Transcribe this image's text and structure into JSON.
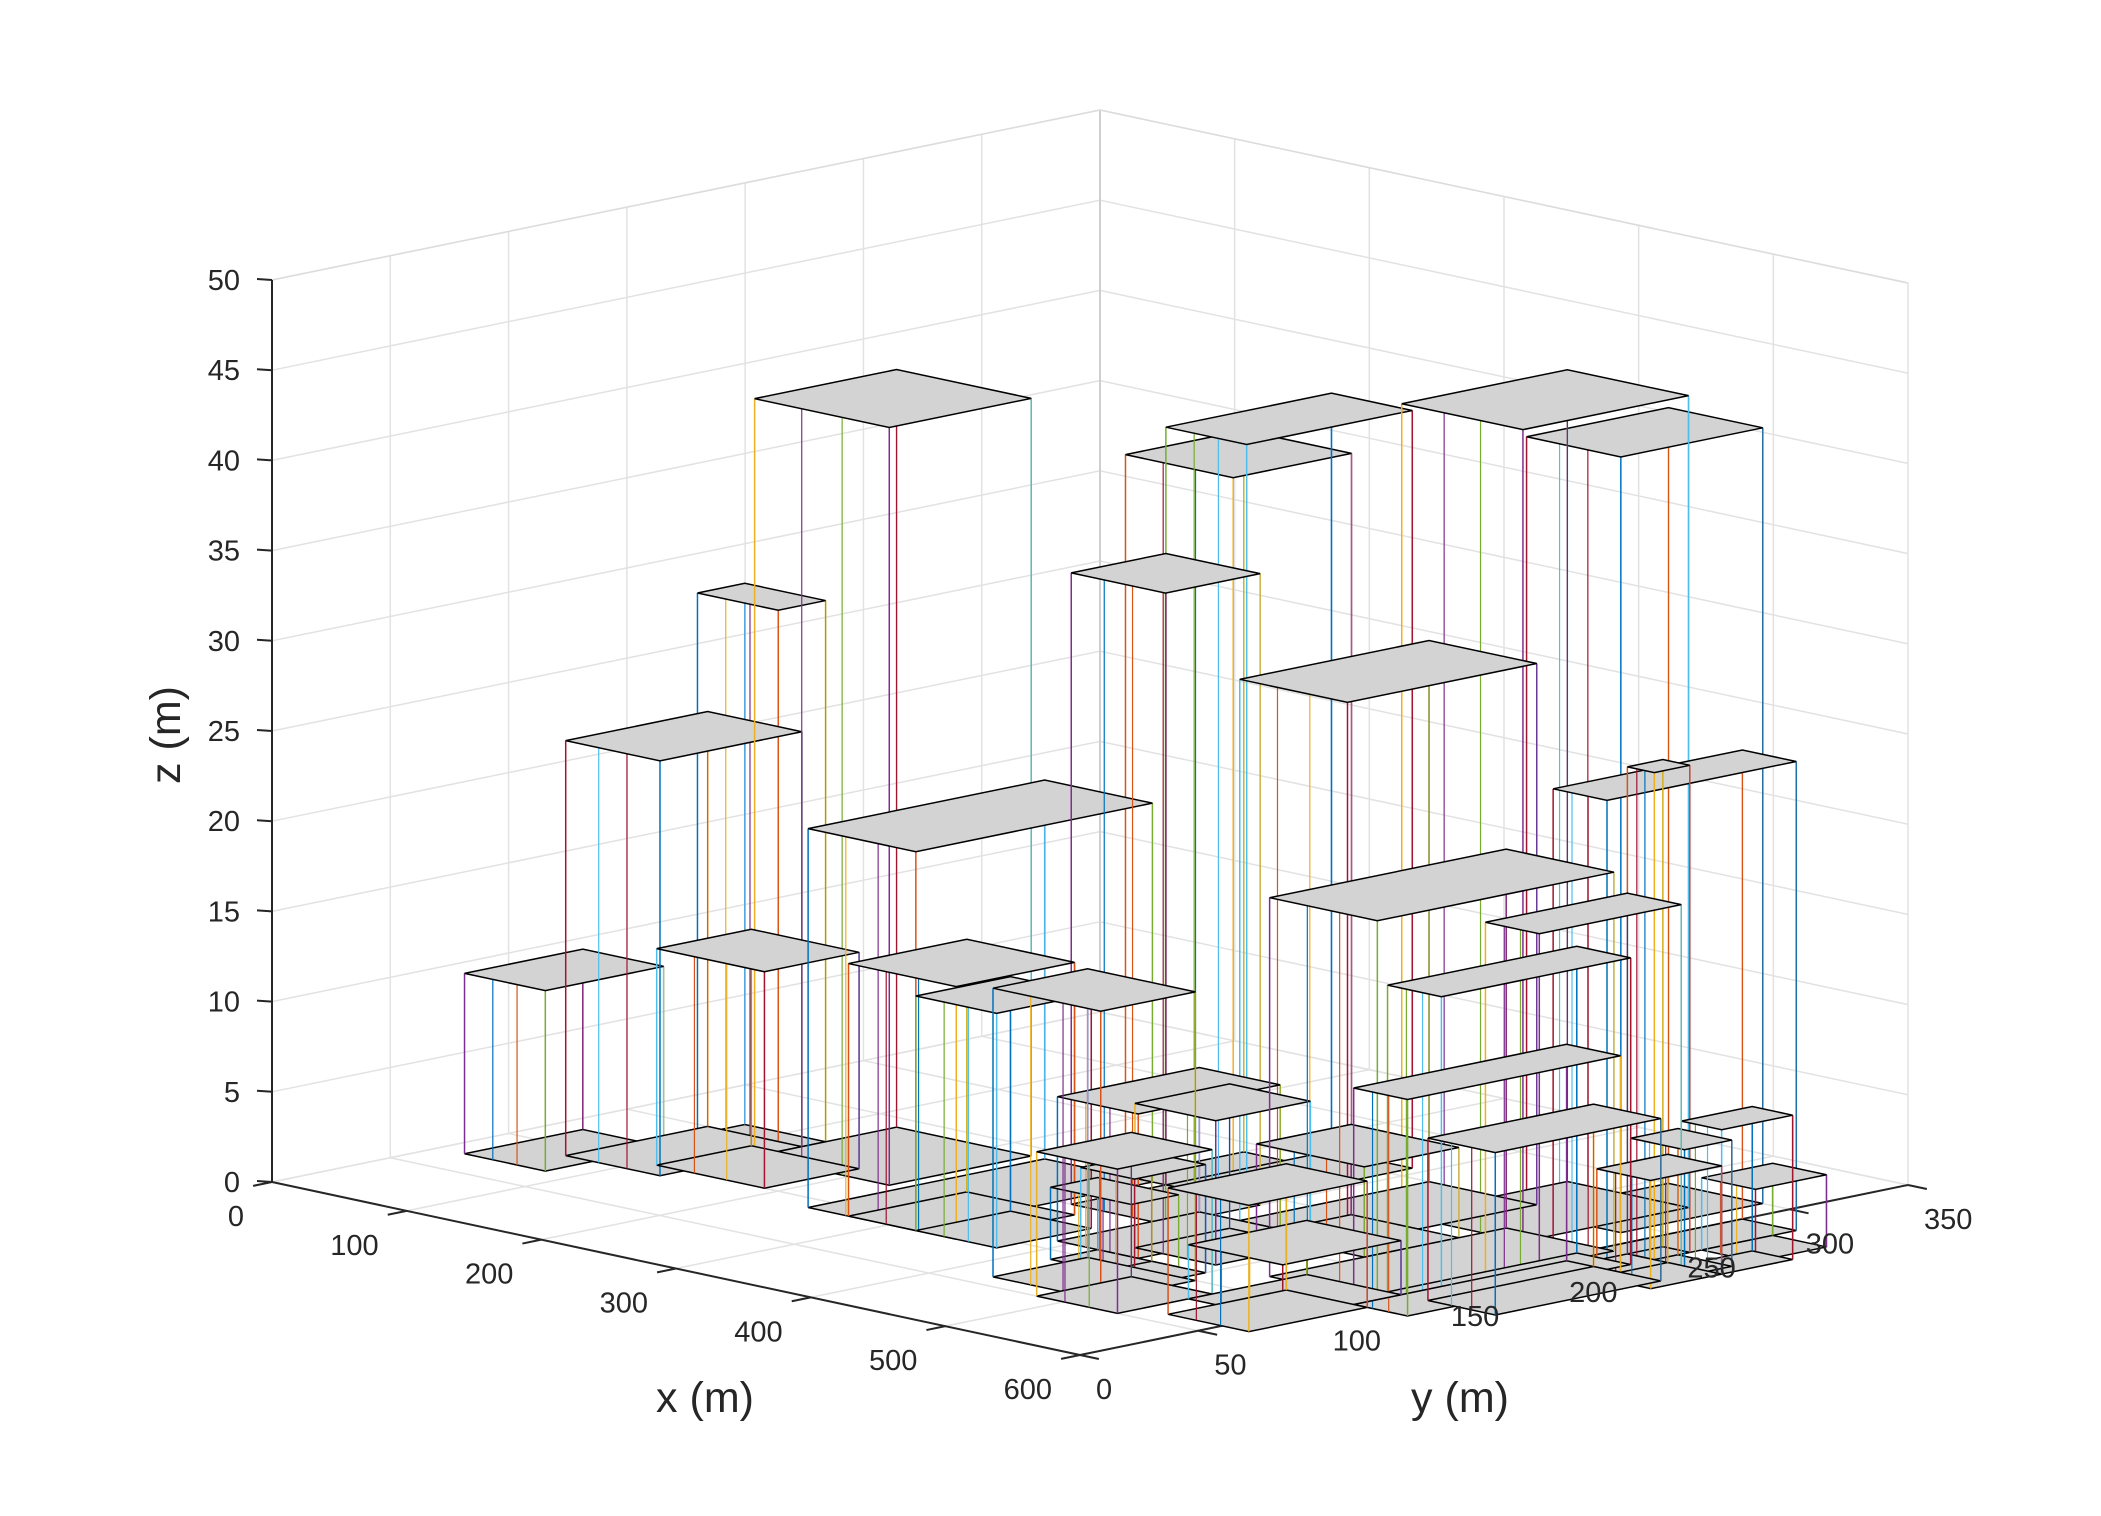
{
  "chart_data": {
    "type": "3d-wireframe",
    "xlabel": "x (m)",
    "ylabel": "y (m)",
    "zlabel": "z (m)",
    "xlim": [
      0,
      600
    ],
    "ylim": [
      0,
      350
    ],
    "zlim": [
      0,
      50
    ],
    "xticks": [
      0,
      100,
      200,
      300,
      400,
      500,
      600
    ],
    "yticks": [
      0,
      50,
      100,
      150,
      200,
      250,
      300,
      350
    ],
    "zticks": [
      0,
      5,
      10,
      15,
      20,
      25,
      30,
      35,
      40,
      45,
      50
    ],
    "grid": true,
    "roof_color": "#d3d3d3",
    "edge_color": "#000000",
    "line_colors": [
      "#0072bd",
      "#d95319",
      "#edb120",
      "#7e2f8e",
      "#77ac30",
      "#4dbeee",
      "#a2142f"
    ],
    "buildings": [
      {
        "x": [
          20,
          80
        ],
        "y": [
          70,
          120
        ],
        "h": 10
      },
      {
        "x": [
          60,
          130
        ],
        "y": [
          90,
          150
        ],
        "h": 23
      },
      {
        "x": [
          70,
          130
        ],
        "y": [
          140,
          160
        ],
        "h": 30
      },
      {
        "x": [
          110,
          190
        ],
        "y": [
          100,
          140
        ],
        "h": 12
      },
      {
        "x": [
          130,
          230
        ],
        "y": [
          130,
          190
        ],
        "h": 42
      },
      {
        "x": [
          240,
          320
        ],
        "y": [
          90,
          190
        ],
        "h": 21
      },
      {
        "x": [
          270,
          350
        ],
        "y": [
          90,
          140
        ],
        "h": 14
      },
      {
        "x": [
          320,
          380
        ],
        "y": [
          90,
          130
        ],
        "h": 13
      },
      {
        "x": [
          330,
          400
        ],
        "y": [
          150,
          190
        ],
        "h": 35
      },
      {
        "x": [
          330,
          390
        ],
        "y": [
          190,
          260
        ],
        "h": 42
      },
      {
        "x": [
          300,
          380
        ],
        "y": [
          190,
          240
        ],
        "h": 40
      },
      {
        "x": [
          390,
          450
        ],
        "y": [
          110,
          170
        ],
        "h": 8
      },
      {
        "x": [
          420,
          480
        ],
        "y": [
          90,
          110
        ],
        "h": 4
      },
      {
        "x": [
          420,
          500
        ],
        "y": [
          170,
          250
        ],
        "h": 30
      },
      {
        "x": [
          470,
          560
        ],
        "y": [
          210,
          280
        ],
        "h": 45
      },
      {
        "x": [
          450,
          530
        ],
        "y": [
          160,
          200
        ],
        "h": 5
      },
      {
        "x": [
          430,
          490
        ],
        "y": [
          120,
          160
        ],
        "h": 8
      },
      {
        "x": [
          430,
          510
        ],
        "y": [
          60,
          100
        ],
        "h": 16
      },
      {
        "x": [
          460,
          500
        ],
        "y": [
          80,
          110
        ],
        "h": 6
      },
      {
        "x": [
          480,
          540
        ],
        "y": [
          50,
          90
        ],
        "h": 8
      },
      {
        "x": [
          530,
          610
        ],
        "y": [
          120,
          220
        ],
        "h": 21
      },
      {
        "x": [
          510,
          580
        ],
        "y": [
          240,
          300
        ],
        "h": 43
      },
      {
        "x": [
          540,
          610
        ],
        "y": [
          80,
          130
        ],
        "h": 3
      },
      {
        "x": [
          560,
          620
        ],
        "y": [
          60,
          110
        ],
        "h": 7
      },
      {
        "x": [
          600,
          640
        ],
        "y": [
          200,
          280
        ],
        "h": 26
      },
      {
        "x": [
          620,
          640
        ],
        "y": [
          220,
          235
        ],
        "h": 27
      },
      {
        "x": [
          610,
          650
        ],
        "y": [
          110,
          200
        ],
        "h": 12
      },
      {
        "x": [
          600,
          640
        ],
        "y": [
          130,
          210
        ],
        "h": 17
      },
      {
        "x": [
          620,
          660
        ],
        "y": [
          160,
          220
        ],
        "h": 20
      },
      {
        "x": [
          630,
          680
        ],
        "y": [
          130,
          200
        ],
        "h": 9
      },
      {
        "x": [
          640,
          680
        ],
        "y": [
          210,
          230
        ],
        "h": 7
      },
      {
        "x": [
          650,
          690
        ],
        "y": [
          190,
          220
        ],
        "h": 6
      },
      {
        "x": [
          660,
          690
        ],
        "y": [
          220,
          250
        ],
        "h": 8
      },
      {
        "x": [
          640,
          680
        ],
        "y": [
          240,
          270
        ],
        "h": 4
      }
    ]
  },
  "colors": {
    "background": "#ffffff",
    "grid": "#e2e2e2",
    "axis": "#262626",
    "text": "#262626"
  }
}
